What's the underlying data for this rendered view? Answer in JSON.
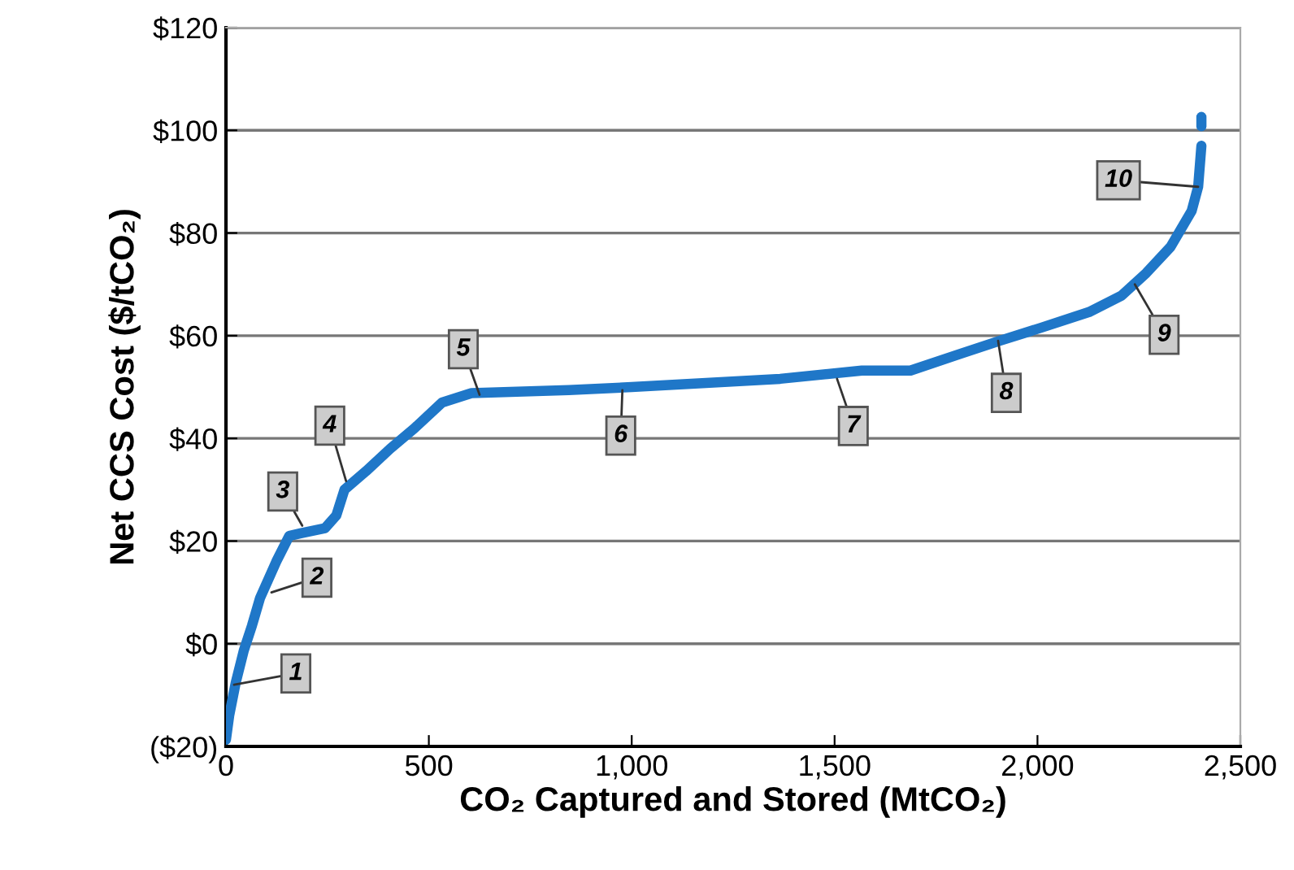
{
  "chart_data": {
    "type": "line",
    "xlabel": "CO₂ Captured and Stored (MtCO₂)",
    "ylabel": "Net CCS Cost ($/tCO₂)",
    "series": [
      {
        "color": "#1f77c8",
        "x": [
          0,
          8,
          24,
          44,
          64,
          84,
          124,
          156,
          184,
          244,
          272,
          292,
          345,
          405,
          465,
          533,
          605,
          845,
          1000,
          1366,
          1567,
          1687,
          1807,
          1907,
          2007,
          2127,
          2207,
          2268,
          2328,
          2380,
          2396,
          2404
        ],
        "values": [
          -18.7,
          -14,
          -7.6,
          -1.3,
          3.5,
          8.9,
          16,
          21,
          21.5,
          22.5,
          25,
          30,
          33.6,
          38,
          42,
          47,
          48.8,
          49.4,
          50,
          51.6,
          53.2,
          53.2,
          56.4,
          59,
          61.5,
          64.6,
          67.8,
          72.2,
          77.3,
          84.3,
          89,
          97
        ]
      },
      {
        "color": "#1f77c8",
        "x": [
          2404,
          2404
        ],
        "values": [
          100.8,
          102.6
        ]
      }
    ],
    "xlim": [
      0,
      2500
    ],
    "xticks": [
      {
        "value": 0,
        "label": "0"
      },
      {
        "value": 500,
        "label": "500"
      },
      {
        "value": 1000,
        "label": "1,000"
      },
      {
        "value": 1500,
        "label": "1,500"
      },
      {
        "value": 2000,
        "label": "2,000"
      },
      {
        "value": 2500,
        "label": "2,500"
      }
    ],
    "ylim": [
      -20,
      120
    ],
    "yticks": [
      {
        "value": -20,
        "label": "($20)"
      },
      {
        "value": 0,
        "label": "$0"
      },
      {
        "value": 20,
        "label": "$20"
      },
      {
        "value": 40,
        "label": "$40"
      },
      {
        "value": 60,
        "label": "$60"
      },
      {
        "value": 80,
        "label": "$80"
      },
      {
        "value": 100,
        "label": "$100"
      },
      {
        "value": 120,
        "label": "$120"
      }
    ],
    "grid": "y",
    "legend": false,
    "marker": "none",
    "line_style": "solid",
    "annotations": [
      {
        "text": "1",
        "x": 20,
        "y": -8
      },
      {
        "text": "2",
        "x": 112,
        "y": 10
      },
      {
        "text": "3",
        "x": 188,
        "y": 23
      },
      {
        "text": "4",
        "x": 296,
        "y": 31.7
      },
      {
        "text": "5",
        "x": 625,
        "y": 48.5
      },
      {
        "text": "6",
        "x": 977,
        "y": 49.4
      },
      {
        "text": "7",
        "x": 1506,
        "y": 51.6
      },
      {
        "text": "8",
        "x": 1903,
        "y": 59
      },
      {
        "text": "9",
        "x": 2240,
        "y": 70
      },
      {
        "text": "10",
        "x": 2396,
        "y": 89
      }
    ]
  }
}
